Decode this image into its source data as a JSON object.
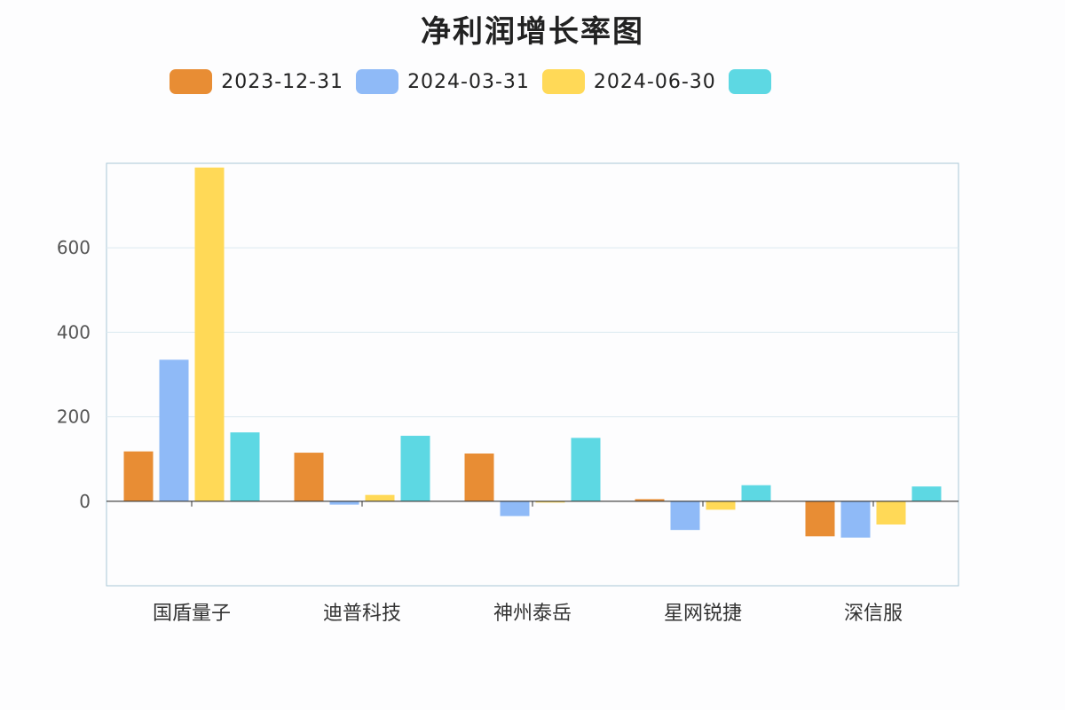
{
  "chart_data": {
    "type": "bar",
    "title": "净利润增长率图",
    "categories": [
      "国盾量子",
      "迪普科技",
      "神州泰岳",
      "星网锐捷",
      "深信服"
    ],
    "series": [
      {
        "name": "2023-12-31",
        "color": "#e88d34",
        "values": [
          118,
          115,
          113,
          5,
          -83
        ]
      },
      {
        "name": "2024-03-31",
        "color": "#8fbaf7",
        "values": [
          335,
          -8,
          -35,
          -68,
          -86
        ]
      },
      {
        "name": "2024-06-30",
        "color": "#ffd957",
        "values": [
          790,
          15,
          -3,
          -20,
          -55
        ]
      },
      {
        "name": "",
        "color": "#5dd8e3",
        "values": [
          163,
          155,
          150,
          38,
          35
        ]
      }
    ],
    "yticks": [
      0,
      200,
      400,
      600
    ],
    "ylim": [
      -200,
      800
    ],
    "grid": true,
    "legend_position": "top-center"
  }
}
